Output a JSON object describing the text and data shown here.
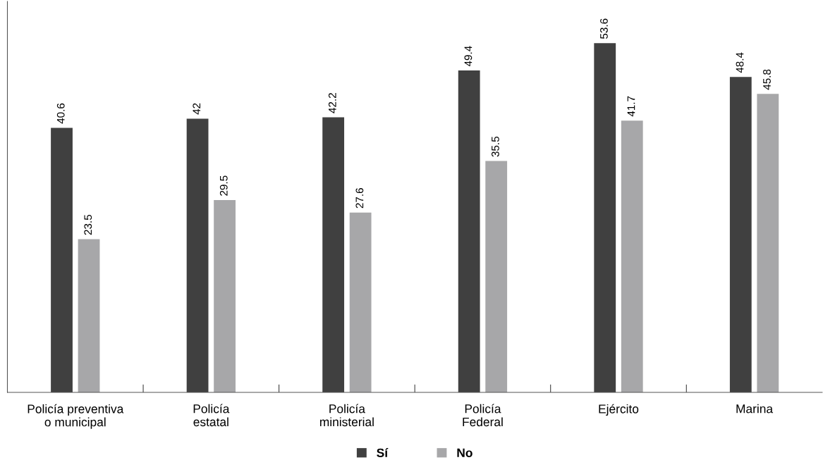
{
  "chart_data": {
    "type": "bar",
    "categories": [
      "Policía preventiva\no municipal",
      "Policía\nestatal",
      "Policía\nministerial",
      "Policía\nFederal",
      "Ejército",
      "Marina"
    ],
    "series": [
      {
        "name": "Sí",
        "color": "#404040",
        "values": [
          40.6,
          42,
          42.2,
          49.4,
          53.6,
          48.4
        ]
      },
      {
        "name": "No",
        "color": "#a7a7a9",
        "values": [
          23.5,
          29.5,
          27.6,
          35.5,
          41.7,
          45.8
        ]
      }
    ],
    "ylim": [
      0,
      60
    ],
    "tick_labels": "x",
    "data_labels": true,
    "legend": "bottom",
    "grid": false
  }
}
